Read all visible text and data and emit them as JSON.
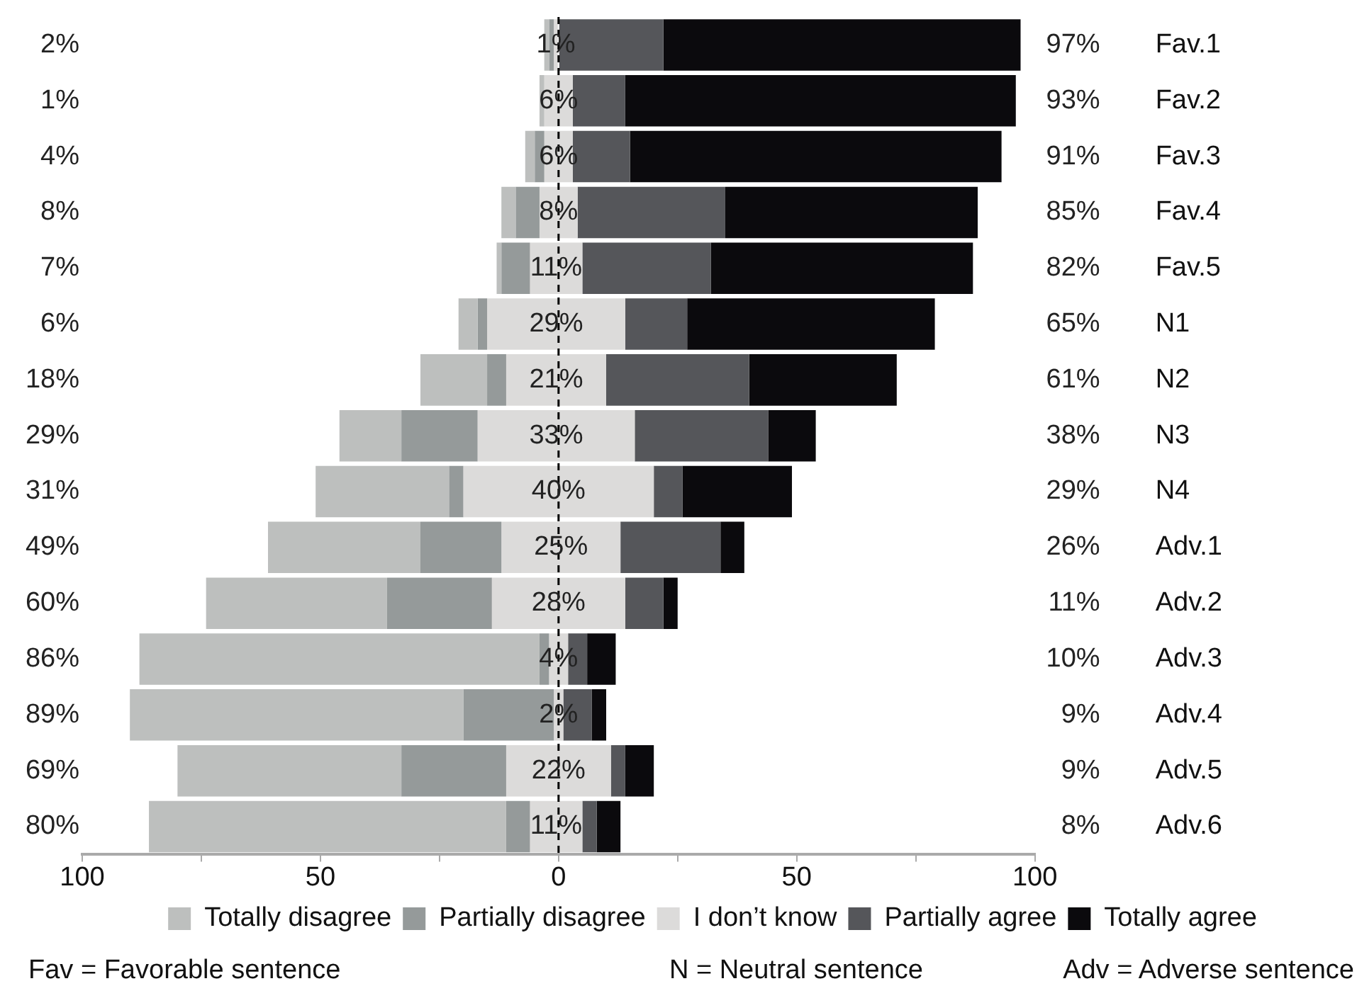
{
  "chart_data": {
    "type": "bar",
    "orientation": "horizontal",
    "stacked": true,
    "categories": [
      "Fav.1",
      "Fav.2",
      "Fav.3",
      "Fav.4",
      "Fav.5",
      "N1",
      "N2",
      "N3",
      "N4",
      "Adv.1",
      "Adv.2",
      "Adv.3",
      "Adv.4",
      "Adv.5",
      "Adv.6"
    ],
    "series": [
      {
        "name": "Totally disagree",
        "color": "#bdbfbe",
        "base": [
          -3,
          -4,
          -7,
          -12,
          -13,
          -21,
          -29,
          -46,
          -51,
          -61,
          -74,
          -88,
          -90,
          -80,
          -86
        ],
        "values": [
          1,
          1,
          2,
          3,
          1,
          4,
          14,
          13,
          28,
          32,
          38,
          84,
          70,
          47,
          75
        ]
      },
      {
        "name": "Partially disagree",
        "color": "#959a9a",
        "values": [
          1,
          0,
          2,
          5,
          6,
          2,
          4,
          16,
          3,
          17,
          22,
          2,
          19,
          22,
          5
        ]
      },
      {
        "name": "I don’t know",
        "color": "#dcdbda",
        "values": [
          1,
          6,
          6,
          8,
          11,
          29,
          21,
          33,
          40,
          25,
          28,
          4,
          2,
          22,
          11
        ],
        "value_labels": [
          "1%",
          "6%",
          "6%",
          "8%",
          "11%",
          "29%",
          "21%",
          "33%",
          "40%",
          "25%",
          "28%",
          "4%",
          "2%",
          "22%",
          "11%"
        ]
      },
      {
        "name": "Partially agree",
        "color": "#55565a",
        "values": [
          22,
          11,
          12,
          31,
          27,
          13,
          30,
          28,
          6,
          21,
          8,
          4,
          6,
          3,
          3
        ]
      },
      {
        "name": "Totally agree",
        "color": "#0b0a0d",
        "values": [
          75,
          82,
          78,
          53,
          55,
          52,
          31,
          10,
          23,
          5,
          3,
          6,
          3,
          6,
          5
        ]
      }
    ],
    "xlim": [
      -100,
      100
    ],
    "xticks": [
      {
        "value": -100,
        "label": "100"
      },
      {
        "value": -75,
        "label": null
      },
      {
        "value": -50,
        "label": "50"
      },
      {
        "value": -25,
        "label": null
      },
      0,
      {
        "value": 25,
        "label": null
      },
      {
        "value": 50,
        "label": "50"
      },
      {
        "value": 75,
        "label": null
      },
      {
        "value": 100,
        "label": "100"
      }
    ],
    "ref_lines": [
      {
        "axis": "x",
        "value": 0,
        "line_style": "dashed",
        "color": "#000000"
      }
    ],
    "legend": "bottom",
    "annotations": [
      "2%",
      "1%",
      "4%",
      "8%",
      "7%",
      "6%",
      "18%",
      "29%",
      "31%",
      "49%",
      "60%",
      "86%",
      "89%",
      "69%",
      "80%",
      "97%",
      "93%",
      "91%",
      "85%",
      "82%",
      "65%",
      "61%",
      "38%",
      "29%",
      "26%",
      "11%",
      "10%",
      "9%",
      "9%",
      "8%",
      "Fav = Favorable sentence",
      "N = Neutral sentence",
      "Adv = Adverse sentence"
    ]
  }
}
